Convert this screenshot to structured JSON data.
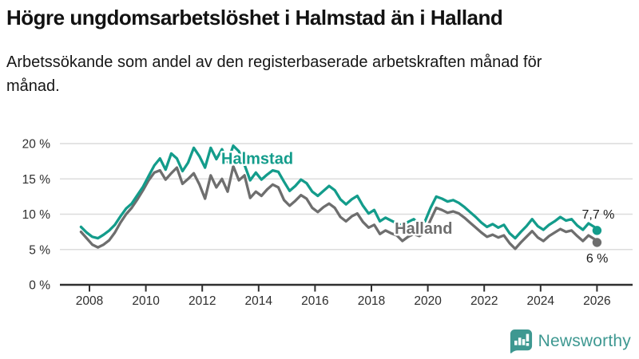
{
  "header": {
    "title": "Högre ungdomsarbetslöshet i Halmstad än i Halland",
    "subtitle": "Arbetssökande som andel av den registerbaserade arbetskraften månad för månad."
  },
  "footer": {
    "brand": "Newsworthy",
    "brand_color": "#3E9891",
    "logo_icon": "newsworthy-speech-bubble-bar-chart"
  },
  "colors": {
    "halmstad": "#139c8b",
    "halland": "#6e6e6e",
    "grid": "#dcdcdc",
    "axis": "#2f2f2f"
  },
  "chart_data": {
    "type": "line",
    "title": "Högre ungdomsarbetslöshet i Halmstad än i Halland",
    "xlabel": "",
    "ylabel": "",
    "grid": true,
    "legend_position": "inline",
    "ylim": [
      0,
      21
    ],
    "xlim": [
      2007.6,
      2026.3
    ],
    "x_ticks": [
      2008,
      2010,
      2012,
      2014,
      2016,
      2018,
      2020,
      2022,
      2024,
      2026
    ],
    "y_ticks": [
      {
        "value": 0,
        "label": "0 %"
      },
      {
        "value": 5,
        "label": "5 %"
      },
      {
        "value": 10,
        "label": "10 %"
      },
      {
        "value": 15,
        "label": "15 %"
      },
      {
        "value": 20,
        "label": "20 %"
      }
    ],
    "x": [
      2007.7,
      2007.9,
      2008.1,
      2008.3,
      2008.5,
      2008.7,
      2008.9,
      2009.1,
      2009.3,
      2009.5,
      2009.7,
      2009.9,
      2010.1,
      2010.3,
      2010.5,
      2010.7,
      2010.9,
      2011.1,
      2011.3,
      2011.5,
      2011.7,
      2011.9,
      2012.1,
      2012.3,
      2012.5,
      2012.7,
      2012.9,
      2013.1,
      2013.3,
      2013.5,
      2013.7,
      2013.9,
      2014.1,
      2014.3,
      2014.5,
      2014.7,
      2014.9,
      2015.1,
      2015.3,
      2015.5,
      2015.7,
      2015.9,
      2016.1,
      2016.3,
      2016.5,
      2016.7,
      2016.9,
      2017.1,
      2017.3,
      2017.5,
      2017.7,
      2017.9,
      2018.1,
      2018.3,
      2018.5,
      2018.7,
      2018.9,
      2019.1,
      2019.3,
      2019.5,
      2019.7,
      2019.9,
      2020.1,
      2020.3,
      2020.5,
      2020.7,
      2020.9,
      2021.1,
      2021.3,
      2021.5,
      2021.7,
      2021.9,
      2022.1,
      2022.3,
      2022.5,
      2022.7,
      2022.9,
      2023.1,
      2023.3,
      2023.5,
      2023.7,
      2023.9,
      2024.1,
      2024.3,
      2024.5,
      2024.7,
      2024.9,
      2025.1,
      2025.3,
      2025.5,
      2025.7,
      2025.9,
      2026.0
    ],
    "series": [
      {
        "name": "Halmstad",
        "color": "#139c8b",
        "inline_label": {
          "x": 2013.95,
          "y": 17.9
        },
        "end_label": "7,7 %",
        "end_value": 7.7,
        "values": [
          8.2,
          7.4,
          6.8,
          6.6,
          7.1,
          7.7,
          8.5,
          9.7,
          10.8,
          11.5,
          12.7,
          13.9,
          15.4,
          16.9,
          17.9,
          16.3,
          18.6,
          17.9,
          16.1,
          17.3,
          19.4,
          18.2,
          16.6,
          19.4,
          17.8,
          19.2,
          17.4,
          19.7,
          18.9,
          17.0,
          14.8,
          15.9,
          14.9,
          15.6,
          16.2,
          16.0,
          14.6,
          13.3,
          14.0,
          14.9,
          14.4,
          13.2,
          12.6,
          13.3,
          14.0,
          13.4,
          12.1,
          11.4,
          12.1,
          12.6,
          11.2,
          10.1,
          10.6,
          9.0,
          9.5,
          9.1,
          8.7,
          8.4,
          8.9,
          9.3,
          8.6,
          9.0,
          10.9,
          12.5,
          12.2,
          11.8,
          12.0,
          11.6,
          11.0,
          10.3,
          9.6,
          8.8,
          8.2,
          8.6,
          8.1,
          8.5,
          7.3,
          6.6,
          7.5,
          8.3,
          9.3,
          8.3,
          7.8,
          8.5,
          9.0,
          9.6,
          9.1,
          9.3,
          8.4,
          7.8,
          8.7,
          8.2,
          7.7
        ]
      },
      {
        "name": "Halland",
        "color": "#6e6e6e",
        "inline_label": {
          "x": 2019.85,
          "y": 8.0
        },
        "end_label": "6 %",
        "end_value": 6.0,
        "values": [
          7.5,
          6.6,
          5.7,
          5.3,
          5.7,
          6.3,
          7.4,
          8.8,
          10.0,
          10.9,
          12.1,
          13.4,
          14.8,
          15.9,
          16.2,
          14.9,
          15.8,
          16.6,
          14.3,
          15.0,
          15.8,
          14.2,
          12.2,
          15.5,
          13.8,
          15.0,
          13.2,
          16.8,
          14.8,
          15.5,
          12.3,
          13.2,
          12.6,
          13.5,
          14.2,
          13.8,
          12.0,
          11.2,
          11.9,
          12.7,
          12.2,
          10.9,
          10.3,
          11.0,
          11.5,
          10.9,
          9.6,
          9.0,
          9.7,
          10.1,
          8.9,
          8.1,
          8.5,
          7.2,
          7.7,
          7.3,
          7.0,
          6.2,
          6.8,
          7.2,
          6.9,
          7.4,
          9.2,
          10.9,
          10.6,
          10.2,
          10.4,
          10.1,
          9.5,
          8.8,
          8.1,
          7.4,
          6.8,
          7.1,
          6.7,
          7.0,
          5.9,
          5.1,
          6.0,
          6.8,
          7.6,
          6.7,
          6.2,
          6.9,
          7.4,
          7.9,
          7.5,
          7.7,
          6.9,
          6.2,
          7.0,
          6.5,
          6.0
        ]
      }
    ]
  }
}
